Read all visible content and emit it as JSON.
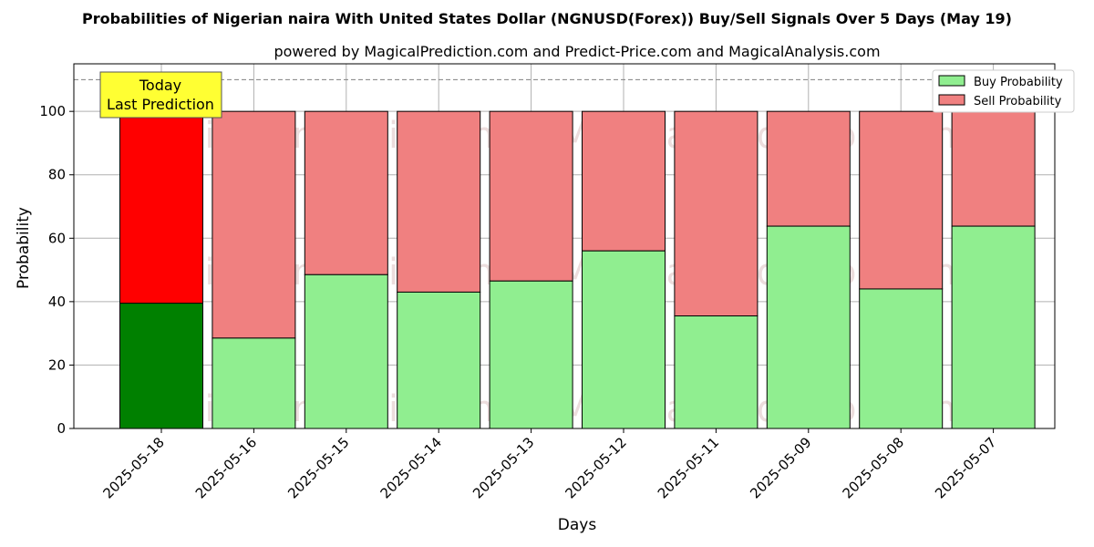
{
  "colors": {
    "today_buy": "#008000",
    "today_sell": "#ff0000",
    "buy": "#90ee90",
    "sell": "#f08080",
    "grid": "#b0b0b0",
    "annotation_bg": "#ffff33"
  },
  "chart_data": {
    "type": "bar",
    "stacked": true,
    "title": "Probabilities of Nigerian naira With United States Dollar (NGNUSD(Forex)) Buy/Sell Signals Over 5 Days (May 19)",
    "subtitle": "powered by MagicalPrediction.com and Predict-Price.com and MagicalAnalysis.com",
    "xlabel": "Days",
    "ylabel": "Probability",
    "ylim": [
      0,
      115
    ],
    "yticks": [
      0,
      20,
      40,
      60,
      80,
      100
    ],
    "reference_line": 110,
    "grid": true,
    "legend_position": "top-right",
    "categories": [
      "2025-05-18",
      "2025-05-16",
      "2025-05-15",
      "2025-05-14",
      "2025-05-13",
      "2025-05-12",
      "2025-05-11",
      "2025-05-09",
      "2025-05-08",
      "2025-05-07"
    ],
    "series": [
      {
        "name": "Buy Probability",
        "values": [
          39.5,
          28.5,
          48.5,
          43.0,
          46.5,
          56.0,
          35.5,
          63.8,
          44.0,
          63.8
        ]
      },
      {
        "name": "Sell Probability",
        "values": [
          60.5,
          71.5,
          51.5,
          57.0,
          53.5,
          44.0,
          64.5,
          36.2,
          56.0,
          36.2
        ]
      }
    ],
    "annotation": {
      "line1": "Today",
      "line2": "Last Prediction"
    },
    "watermarks": [
      "MagicalAnalysis.com",
      "MagicalPrediction.com"
    ]
  }
}
